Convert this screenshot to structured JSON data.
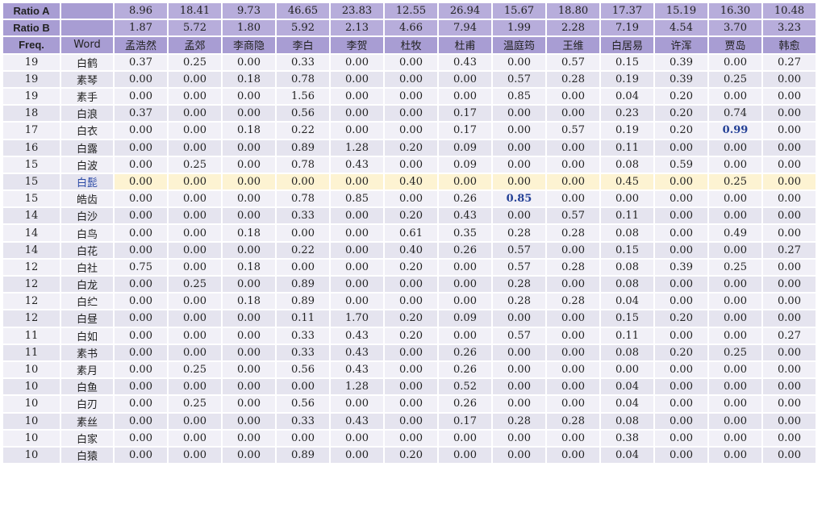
{
  "ratio_a": {
    "label": "Ratio A",
    "values": [
      "8.96",
      "18.41",
      "9.73",
      "46.65",
      "23.83",
      "12.55",
      "26.94",
      "15.67",
      "18.80",
      "17.37",
      "15.19",
      "16.30",
      "10.48"
    ]
  },
  "ratio_b": {
    "label": "Ratio B",
    "values": [
      "1.87",
      "5.72",
      "1.80",
      "5.92",
      "2.13",
      "4.66",
      "7.94",
      "1.99",
      "2.28",
      "7.19",
      "4.54",
      "3.70",
      "3.23"
    ]
  },
  "columns": {
    "freq_label": "Freq.",
    "word_label": "Word",
    "poets": [
      "孟浩然",
      "孟郊",
      "李商隐",
      "李白",
      "李贺",
      "杜牧",
      "杜甫",
      "温庭筠",
      "王维",
      "白居易",
      "许浑",
      "贾岛",
      "韩愈"
    ]
  },
  "rows": [
    {
      "freq": "19",
      "word": "白鹤",
      "values": [
        "0.37",
        "0.25",
        "0.00",
        "0.33",
        "0.00",
        "0.00",
        "0.43",
        "0.00",
        "0.57",
        "0.15",
        "0.39",
        "0.00",
        "0.27"
      ]
    },
    {
      "freq": "19",
      "word": "素琴",
      "values": [
        "0.00",
        "0.00",
        "0.18",
        "0.78",
        "0.00",
        "0.00",
        "0.00",
        "0.57",
        "0.28",
        "0.19",
        "0.39",
        "0.25",
        "0.00"
      ]
    },
    {
      "freq": "19",
      "word": "素手",
      "values": [
        "0.00",
        "0.00",
        "0.00",
        "1.56",
        "0.00",
        "0.00",
        "0.00",
        "0.85",
        "0.00",
        "0.04",
        "0.20",
        "0.00",
        "0.00"
      ]
    },
    {
      "freq": "18",
      "word": "白浪",
      "values": [
        "0.37",
        "0.00",
        "0.00",
        "0.56",
        "0.00",
        "0.00",
        "0.17",
        "0.00",
        "0.00",
        "0.23",
        "0.20",
        "0.74",
        "0.00"
      ]
    },
    {
      "freq": "17",
      "word": "白衣",
      "values": [
        "0.00",
        "0.00",
        "0.18",
        "0.22",
        "0.00",
        "0.00",
        "0.17",
        "0.00",
        "0.57",
        "0.19",
        "0.20",
        "0.99",
        "0.00"
      ]
    },
    {
      "freq": "16",
      "word": "白露",
      "values": [
        "0.00",
        "0.00",
        "0.00",
        "0.89",
        "1.28",
        "0.20",
        "0.09",
        "0.00",
        "0.00",
        "0.11",
        "0.00",
        "0.00",
        "0.00"
      ]
    },
    {
      "freq": "15",
      "word": "白波",
      "values": [
        "0.00",
        "0.25",
        "0.00",
        "0.78",
        "0.43",
        "0.00",
        "0.09",
        "0.00",
        "0.00",
        "0.08",
        "0.59",
        "0.00",
        "0.00"
      ]
    },
    {
      "freq": "15",
      "word": "白髭",
      "values": [
        "0.00",
        "0.00",
        "0.00",
        "0.00",
        "0.00",
        "0.40",
        "0.00",
        "0.00",
        "0.00",
        "0.45",
        "0.00",
        "0.25",
        "0.00"
      ]
    },
    {
      "freq": "15",
      "word": "皓齿",
      "values": [
        "0.00",
        "0.00",
        "0.00",
        "0.78",
        "0.85",
        "0.00",
        "0.26",
        "0.85",
        "0.00",
        "0.00",
        "0.00",
        "0.00",
        "0.00"
      ]
    },
    {
      "freq": "14",
      "word": "白沙",
      "values": [
        "0.00",
        "0.00",
        "0.00",
        "0.33",
        "0.00",
        "0.20",
        "0.43",
        "0.00",
        "0.57",
        "0.11",
        "0.00",
        "0.00",
        "0.00"
      ]
    },
    {
      "freq": "14",
      "word": "白鸟",
      "values": [
        "0.00",
        "0.00",
        "0.18",
        "0.00",
        "0.00",
        "0.61",
        "0.35",
        "0.28",
        "0.28",
        "0.08",
        "0.00",
        "0.49",
        "0.00"
      ]
    },
    {
      "freq": "14",
      "word": "白花",
      "values": [
        "0.00",
        "0.00",
        "0.00",
        "0.22",
        "0.00",
        "0.40",
        "0.26",
        "0.57",
        "0.00",
        "0.15",
        "0.00",
        "0.00",
        "0.27"
      ]
    },
    {
      "freq": "12",
      "word": "白社",
      "values": [
        "0.75",
        "0.00",
        "0.18",
        "0.00",
        "0.00",
        "0.20",
        "0.00",
        "0.57",
        "0.28",
        "0.08",
        "0.39",
        "0.25",
        "0.00"
      ]
    },
    {
      "freq": "12",
      "word": "白龙",
      "values": [
        "0.00",
        "0.25",
        "0.00",
        "0.89",
        "0.00",
        "0.00",
        "0.00",
        "0.28",
        "0.00",
        "0.08",
        "0.00",
        "0.00",
        "0.00"
      ]
    },
    {
      "freq": "12",
      "word": "白纻",
      "values": [
        "0.00",
        "0.00",
        "0.18",
        "0.89",
        "0.00",
        "0.00",
        "0.00",
        "0.28",
        "0.28",
        "0.04",
        "0.00",
        "0.00",
        "0.00"
      ]
    },
    {
      "freq": "12",
      "word": "白昼",
      "values": [
        "0.00",
        "0.00",
        "0.00",
        "0.11",
        "1.70",
        "0.20",
        "0.09",
        "0.00",
        "0.00",
        "0.15",
        "0.20",
        "0.00",
        "0.00"
      ]
    },
    {
      "freq": "11",
      "word": "白如",
      "values": [
        "0.00",
        "0.00",
        "0.00",
        "0.33",
        "0.43",
        "0.20",
        "0.00",
        "0.57",
        "0.00",
        "0.11",
        "0.00",
        "0.00",
        "0.27"
      ]
    },
    {
      "freq": "11",
      "word": "素书",
      "values": [
        "0.00",
        "0.00",
        "0.00",
        "0.33",
        "0.43",
        "0.00",
        "0.26",
        "0.00",
        "0.00",
        "0.08",
        "0.20",
        "0.25",
        "0.00"
      ]
    },
    {
      "freq": "10",
      "word": "素月",
      "values": [
        "0.00",
        "0.25",
        "0.00",
        "0.56",
        "0.43",
        "0.00",
        "0.26",
        "0.00",
        "0.00",
        "0.00",
        "0.00",
        "0.00",
        "0.00"
      ]
    },
    {
      "freq": "10",
      "word": "白鱼",
      "values": [
        "0.00",
        "0.00",
        "0.00",
        "0.00",
        "1.28",
        "0.00",
        "0.52",
        "0.00",
        "0.00",
        "0.04",
        "0.00",
        "0.00",
        "0.00"
      ]
    },
    {
      "freq": "10",
      "word": "白刃",
      "values": [
        "0.00",
        "0.25",
        "0.00",
        "0.56",
        "0.00",
        "0.00",
        "0.26",
        "0.00",
        "0.00",
        "0.04",
        "0.00",
        "0.00",
        "0.00"
      ]
    },
    {
      "freq": "10",
      "word": "素丝",
      "values": [
        "0.00",
        "0.00",
        "0.00",
        "0.33",
        "0.43",
        "0.00",
        "0.17",
        "0.28",
        "0.28",
        "0.08",
        "0.00",
        "0.00",
        "0.00"
      ]
    },
    {
      "freq": "10",
      "word": "白家",
      "values": [
        "0.00",
        "0.00",
        "0.00",
        "0.00",
        "0.00",
        "0.00",
        "0.00",
        "0.00",
        "0.00",
        "0.38",
        "0.00",
        "0.00",
        "0.00"
      ]
    },
    {
      "freq": "10",
      "word": "白猿",
      "values": [
        "0.00",
        "0.00",
        "0.00",
        "0.89",
        "0.00",
        "0.20",
        "0.00",
        "0.00",
        "0.00",
        "0.04",
        "0.00",
        "0.00",
        "0.00"
      ]
    }
  ],
  "highlight": {
    "row_word": "白髭",
    "row_bg": "#fdf3d2"
  },
  "emphasis": [
    {
      "row_word": "白衣",
      "col_poet": "贾岛",
      "color": "#223f95"
    },
    {
      "row_word": "皓齿",
      "col_poet": "温庭筠",
      "color": "#223f95"
    }
  ],
  "colors": {
    "header_bg": "#b7addb",
    "header_label_bg": "#a89dd3",
    "row_odd": "#f1f0f7",
    "row_even": "#e5e4ef"
  }
}
